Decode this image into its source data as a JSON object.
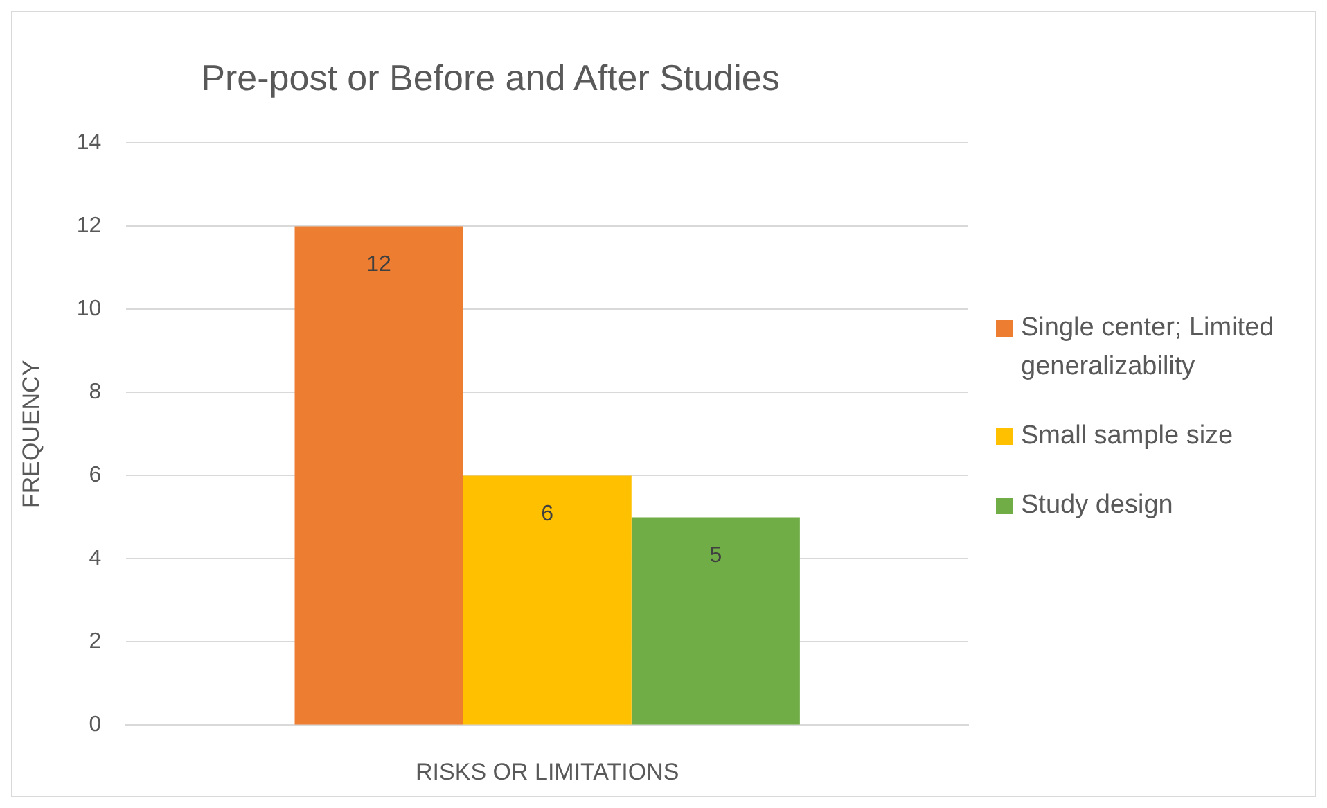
{
  "chart_data": {
    "type": "bar",
    "title": "Pre-post or Before and After Studies",
    "xlabel": "RISKS OR LIMITATIONS",
    "ylabel": "FREQUENCY",
    "categories": [
      null
    ],
    "series": [
      {
        "name": "Single center; Limited generalizability",
        "color": "#ed7d31",
        "values": [
          12
        ]
      },
      {
        "name": "Small sample size",
        "color": "#ffc000",
        "values": [
          6
        ]
      },
      {
        "name": "Study design",
        "color": "#70ad47",
        "values": [
          5
        ]
      }
    ],
    "ylim": [
      0,
      14
    ],
    "yticks": [
      0,
      2,
      4,
      6,
      8,
      10,
      12,
      14
    ],
    "grid": "y",
    "legend": "right",
    "data_labels": true
  }
}
